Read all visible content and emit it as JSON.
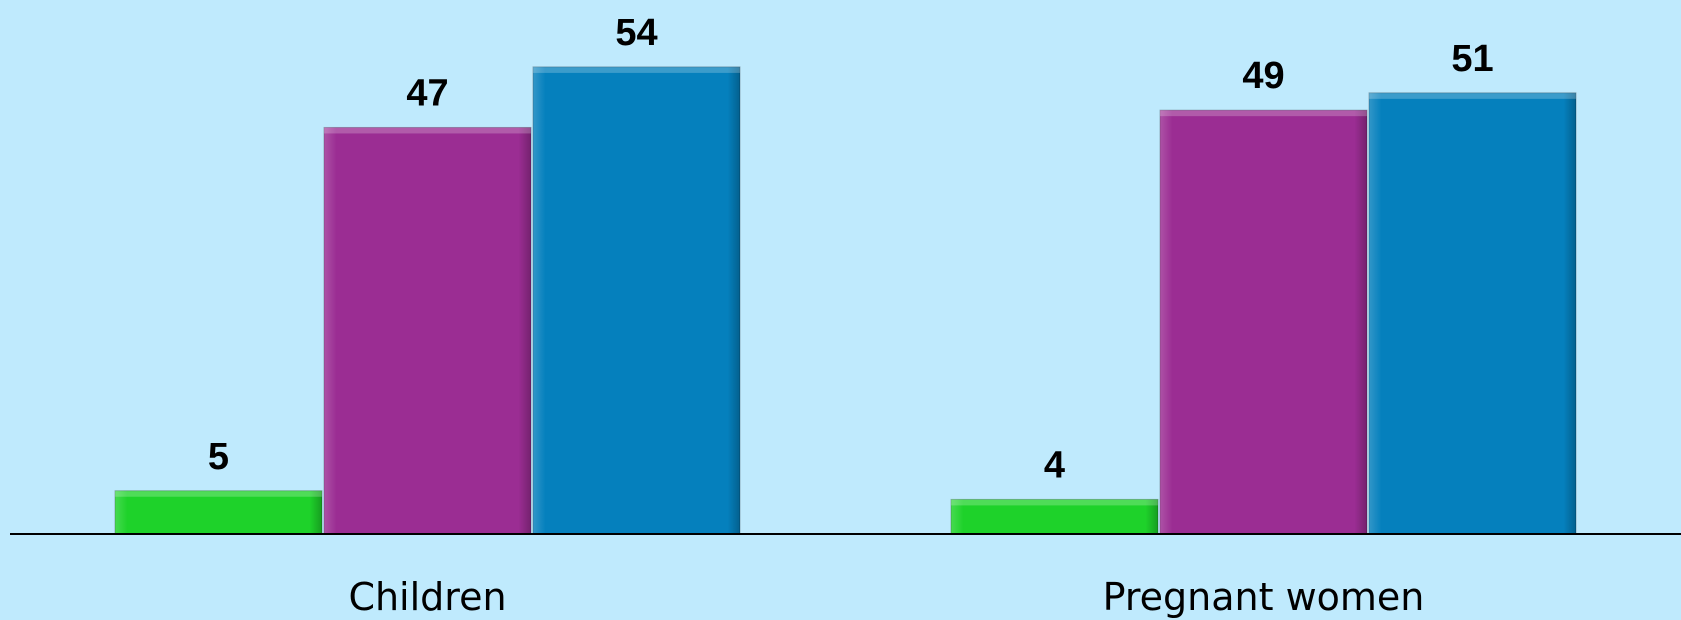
{
  "chart_data": {
    "type": "bar",
    "categories": [
      "Children",
      "Pregnant women"
    ],
    "series": [
      {
        "values": [
          5,
          4
        ],
        "color": "#1ed22a"
      },
      {
        "values": [
          47,
          49
        ],
        "color": "#9b2d93"
      },
      {
        "values": [
          54,
          51
        ],
        "color": "#0580bd"
      }
    ],
    "ylim": [
      0,
      60
    ],
    "grid": false,
    "legend": "none",
    "colors": {
      "background": "#bfeafd",
      "axis": "#000000"
    }
  }
}
